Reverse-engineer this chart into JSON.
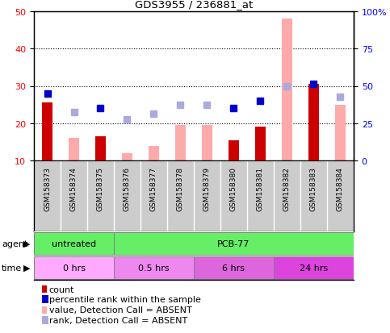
{
  "title": "GDS3955 / 236881_at",
  "samples": [
    "GSM158373",
    "GSM158374",
    "GSM158375",
    "GSM158376",
    "GSM158377",
    "GSM158378",
    "GSM158379",
    "GSM158380",
    "GSM158381",
    "GSM158382",
    "GSM158383",
    "GSM158384"
  ],
  "count_values": [
    25.5,
    null,
    16.5,
    null,
    null,
    null,
    null,
    15.5,
    19.0,
    null,
    30.5,
    null
  ],
  "count_absent_values": [
    null,
    16.0,
    null,
    12.0,
    14.0,
    19.5,
    19.5,
    null,
    null,
    48.0,
    null,
    25.0
  ],
  "rank_values": [
    28.0,
    null,
    24.0,
    null,
    null,
    null,
    null,
    24.0,
    26.0,
    null,
    30.5,
    null
  ],
  "rank_absent_values": [
    null,
    23.0,
    null,
    21.0,
    22.5,
    25.0,
    25.0,
    null,
    null,
    30.0,
    null,
    27.0
  ],
  "ylim": [
    10,
    50
  ],
  "yticks_left": [
    10,
    20,
    30,
    40,
    50
  ],
  "yticks_right": [
    0,
    25,
    50,
    75,
    100
  ],
  "yticks_right_labels": [
    "0",
    "25",
    "50",
    "75",
    "100%"
  ],
  "bar_width": 0.38,
  "count_color": "#cc0000",
  "count_absent_color": "#ffaaaa",
  "rank_color": "#0000cc",
  "rank_absent_color": "#aaaadd",
  "sample_bg_color": "#cccccc",
  "green_color": "#66ee66",
  "pink_light_color": "#ffaaff",
  "pink_dark_color": "#dd44dd",
  "legend_items": [
    {
      "label": "count",
      "color": "#cc0000",
      "type": "rect"
    },
    {
      "label": "percentile rank within the sample",
      "color": "#0000cc",
      "type": "rect"
    },
    {
      "label": "value, Detection Call = ABSENT",
      "color": "#ffaaaa",
      "type": "rect"
    },
    {
      "label": "rank, Detection Call = ABSENT",
      "color": "#aaaadd",
      "type": "rect"
    }
  ],
  "agent_row": [
    {
      "label": "untreated",
      "cols": [
        0,
        1,
        2
      ],
      "color": "#66ee66"
    },
    {
      "label": "PCB-77",
      "cols": [
        3,
        4,
        5,
        6,
        7,
        8,
        9,
        10,
        11
      ],
      "color": "#66ee66"
    }
  ],
  "time_row": [
    {
      "label": "0 hrs",
      "cols": [
        0,
        1,
        2
      ],
      "color": "#ffaaff"
    },
    {
      "label": "0.5 hrs",
      "cols": [
        3,
        4,
        5
      ],
      "color": "#ee88ee"
    },
    {
      "label": "6 hrs",
      "cols": [
        6,
        7,
        8
      ],
      "color": "#dd66dd"
    },
    {
      "label": "24 hrs",
      "cols": [
        9,
        10,
        11
      ],
      "color": "#dd44dd"
    }
  ]
}
